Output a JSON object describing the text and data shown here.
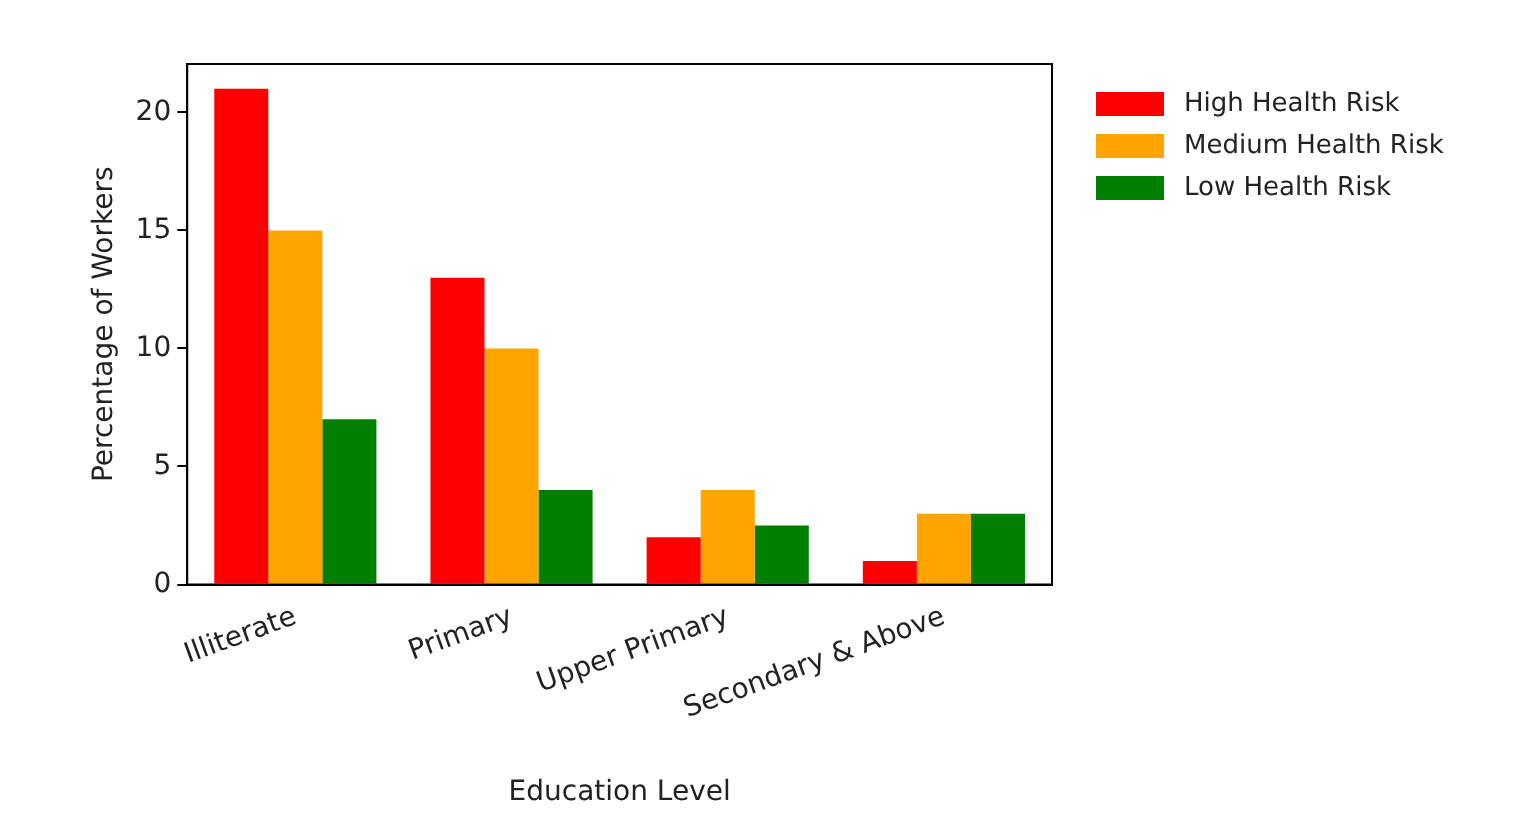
{
  "chart_data": {
    "type": "bar",
    "xlabel": "Education Level",
    "ylabel": "Percentage of Workers",
    "categories": [
      "Illiterate",
      "Primary",
      "Upper Primary",
      "Secondary & Above"
    ],
    "series": [
      {
        "name": "High Health Risk",
        "color": "#ff0000",
        "values": [
          21,
          13,
          2,
          1
        ]
      },
      {
        "name": "Medium Health Risk",
        "color": "#ffa500",
        "values": [
          15,
          10,
          4,
          3
        ]
      },
      {
        "name": "Low Health Risk",
        "color": "#008000",
        "values": [
          7,
          4,
          2.5,
          3
        ]
      }
    ],
    "ylim": [
      0,
      22.05
    ],
    "yticks": [
      0,
      5,
      10,
      15,
      20
    ],
    "grid": false,
    "legend": "top right"
  }
}
